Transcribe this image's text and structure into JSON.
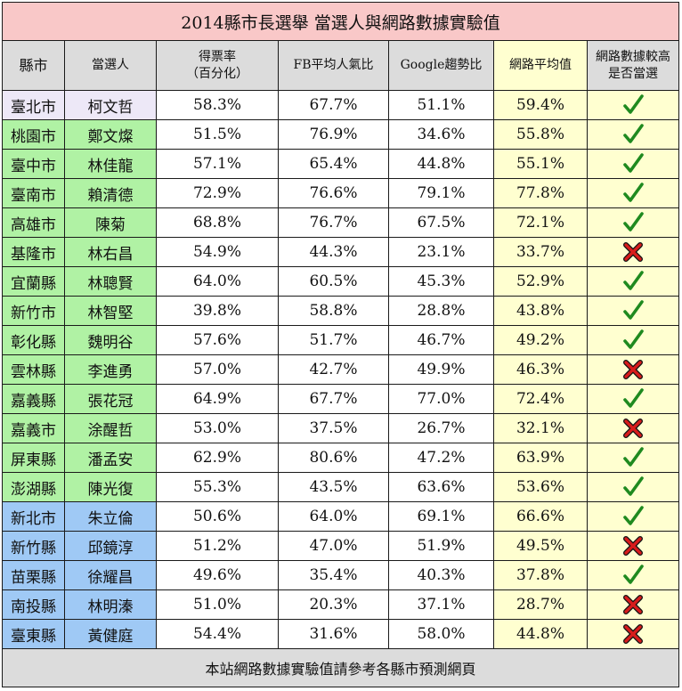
{
  "title": "2014縣市長選舉  當選人與網路數據實驗值",
  "headers": {
    "county": "縣市",
    "candidate": "當選人",
    "vote_rate_line1": "得票率",
    "vote_rate_line2": "（百分化）",
    "fb": "FB平均人氣比",
    "google": "Google趨勢比",
    "net_avg": "網路平均值",
    "higher_line1": "網路數據較高",
    "higher_line2": "是否當選"
  },
  "rows": [
    {
      "county": "臺北市",
      "candidate": "柯文哲",
      "vote": "58.3%",
      "fb": "67.7%",
      "google": "51.1%",
      "avg": "59.4%",
      "result": "check",
      "group": "purple"
    },
    {
      "county": "桃園市",
      "candidate": "鄭文燦",
      "vote": "51.5%",
      "fb": "76.9%",
      "google": "34.6%",
      "avg": "55.8%",
      "result": "check",
      "group": "green"
    },
    {
      "county": "臺中市",
      "candidate": "林佳龍",
      "vote": "57.1%",
      "fb": "65.4%",
      "google": "44.8%",
      "avg": "55.1%",
      "result": "check",
      "group": "green"
    },
    {
      "county": "臺南市",
      "candidate": "賴清德",
      "vote": "72.9%",
      "fb": "76.6%",
      "google": "79.1%",
      "avg": "77.8%",
      "result": "check",
      "group": "green"
    },
    {
      "county": "高雄市",
      "candidate": "陳菊",
      "vote": "68.8%",
      "fb": "76.7%",
      "google": "67.5%",
      "avg": "72.1%",
      "result": "check",
      "group": "green"
    },
    {
      "county": "基隆市",
      "candidate": "林右昌",
      "vote": "54.9%",
      "fb": "44.3%",
      "google": "23.1%",
      "avg": "33.7%",
      "result": "cross",
      "group": "green"
    },
    {
      "county": "宜蘭縣",
      "candidate": "林聰賢",
      "vote": "64.0%",
      "fb": "60.5%",
      "google": "45.3%",
      "avg": "52.9%",
      "result": "check",
      "group": "green"
    },
    {
      "county": "新竹市",
      "candidate": "林智堅",
      "vote": "39.8%",
      "fb": "58.8%",
      "google": "28.8%",
      "avg": "43.8%",
      "result": "check",
      "group": "green"
    },
    {
      "county": "彰化縣",
      "candidate": "魏明谷",
      "vote": "57.6%",
      "fb": "51.7%",
      "google": "46.7%",
      "avg": "49.2%",
      "result": "check",
      "group": "green"
    },
    {
      "county": "雲林縣",
      "candidate": "李進勇",
      "vote": "57.0%",
      "fb": "42.7%",
      "google": "49.9%",
      "avg": "46.3%",
      "result": "cross",
      "group": "green"
    },
    {
      "county": "嘉義縣",
      "candidate": "張花冠",
      "vote": "64.9%",
      "fb": "67.7%",
      "google": "77.0%",
      "avg": "72.4%",
      "result": "check",
      "group": "green"
    },
    {
      "county": "嘉義市",
      "candidate": "涂醒哲",
      "vote": "53.0%",
      "fb": "37.5%",
      "google": "26.7%",
      "avg": "32.1%",
      "result": "cross",
      "group": "green"
    },
    {
      "county": "屏東縣",
      "candidate": "潘孟安",
      "vote": "62.9%",
      "fb": "80.6%",
      "google": "47.2%",
      "avg": "63.9%",
      "result": "check",
      "group": "green"
    },
    {
      "county": "澎湖縣",
      "candidate": "陳光復",
      "vote": "55.3%",
      "fb": "43.5%",
      "google": "63.6%",
      "avg": "53.6%",
      "result": "check",
      "group": "green"
    },
    {
      "county": "新北市",
      "candidate": "朱立倫",
      "vote": "50.6%",
      "fb": "64.0%",
      "google": "69.1%",
      "avg": "66.6%",
      "result": "check",
      "group": "blue"
    },
    {
      "county": "新竹縣",
      "candidate": "邱鏡淳",
      "vote": "51.2%",
      "fb": "47.0%",
      "google": "51.9%",
      "avg": "49.5%",
      "result": "cross",
      "group": "blue"
    },
    {
      "county": "苗栗縣",
      "candidate": "徐耀昌",
      "vote": "49.6%",
      "fb": "35.4%",
      "google": "40.3%",
      "avg": "37.8%",
      "result": "check",
      "group": "blue"
    },
    {
      "county": "南投縣",
      "candidate": "林明溱",
      "vote": "51.0%",
      "fb": "20.3%",
      "google": "37.1%",
      "avg": "28.7%",
      "result": "cross",
      "group": "blue"
    },
    {
      "county": "臺東縣",
      "candidate": "黃健庭",
      "vote": "54.4%",
      "fb": "31.6%",
      "google": "58.0%",
      "avg": "44.8%",
      "result": "cross",
      "group": "blue"
    }
  ],
  "footer": "本站網路數據實驗值請參考各縣市預測網頁",
  "colors": {
    "title_bg": "#f9c8c8",
    "header_bg": "#dcdcdc",
    "purple_group": "#ede8f7",
    "green_group": "#b0f2a4",
    "blue_group": "#9fc9f5",
    "avg_column": "#ffffd0",
    "check_mark": "#1f8a1f",
    "cross_mark": "#d81c1c"
  },
  "icons": {
    "check": "check-mark-icon",
    "cross": "cross-mark-icon"
  }
}
